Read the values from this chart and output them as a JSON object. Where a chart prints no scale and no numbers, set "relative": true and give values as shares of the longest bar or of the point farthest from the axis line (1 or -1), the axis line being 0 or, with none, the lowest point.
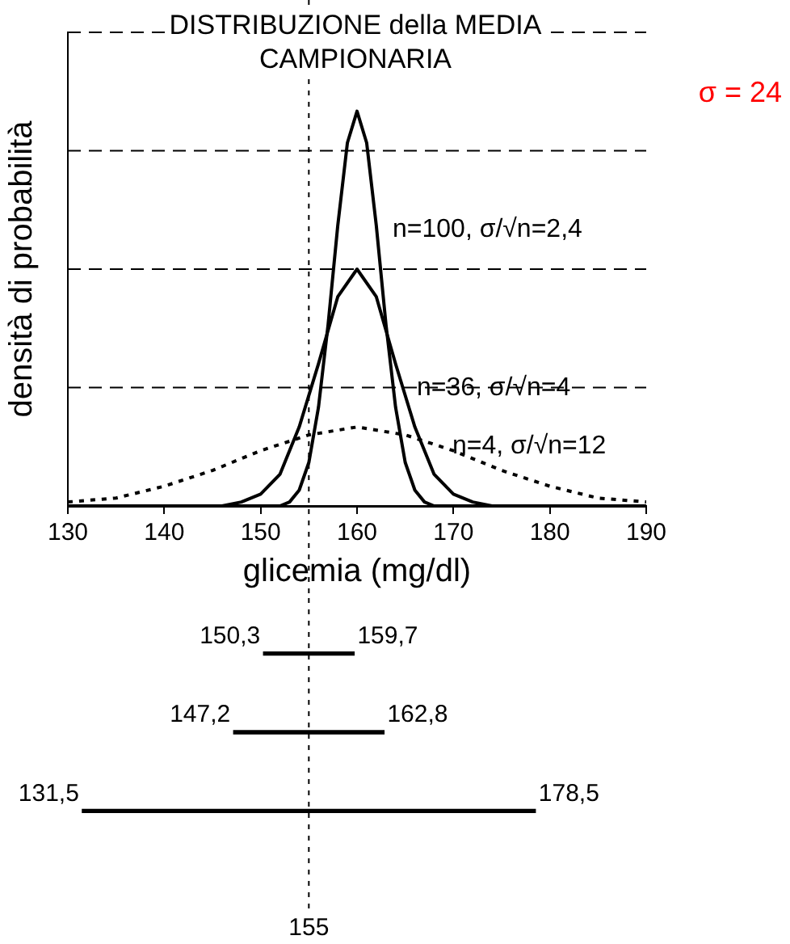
{
  "chart_data": [
    {
      "type": "line",
      "title": "DISTRIBUZIONE della MEDIA\nCAMPIONARIA",
      "xlabel": "glicemia (mg/dl)",
      "ylabel": "densità di probabilità",
      "relative": true,
      "xlim": [
        130,
        190
      ],
      "xticks": [
        130,
        140,
        150,
        160,
        170,
        180,
        190
      ],
      "grid": false,
      "legend": false,
      "marker": "none",
      "annotations": [
        "σ = 24"
      ],
      "ref_lines": [
        {
          "axis": "y",
          "value": 0.3,
          "line_style": "dashed"
        },
        {
          "axis": "y",
          "value": 0.6,
          "line_style": "dashed"
        },
        {
          "axis": "y",
          "value": 0.9,
          "line_style": "dashed"
        },
        {
          "axis": "y",
          "value": 1.2,
          "line_style": "dashed"
        },
        {
          "axis": "x",
          "value": 155,
          "line_style": "dotted"
        }
      ],
      "series": [
        {
          "name": "n=100, σ/√n=2,4",
          "color": "#000000",
          "line_style": "solid",
          "x": [
            130,
            148,
            150,
            152,
            153,
            154,
            155,
            156,
            157,
            158,
            159,
            160,
            161,
            162,
            163,
            164,
            165,
            166,
            167,
            168,
            170,
            172,
            190
          ],
          "values": [
            0,
            0,
            0,
            0,
            0.01,
            0.04,
            0.11,
            0.25,
            0.46,
            0.71,
            0.92,
            1,
            0.92,
            0.71,
            0.46,
            0.25,
            0.11,
            0.04,
            0.01,
            0,
            0,
            0,
            0
          ]
        },
        {
          "name": "n=36, σ/√n=4",
          "color": "#000000",
          "line_style": "solid",
          "x": [
            130,
            146,
            148,
            150,
            152,
            154,
            156,
            158,
            160,
            162,
            164,
            166,
            168,
            170,
            172,
            174,
            190
          ],
          "values": [
            0,
            0,
            0.01,
            0.03,
            0.08,
            0.2,
            0.36,
            0.53,
            0.6,
            0.53,
            0.36,
            0.2,
            0.08,
            0.03,
            0.01,
            0,
            0
          ]
        },
        {
          "name": "n=4, σ/√n=12",
          "color": "#000000",
          "line_style": "dotted",
          "x": [
            130,
            135,
            140,
            145,
            150,
            155,
            160,
            165,
            170,
            175,
            180,
            185,
            190
          ],
          "values": [
            0.01,
            0.02,
            0.05,
            0.09,
            0.14,
            0.18,
            0.2,
            0.18,
            0.14,
            0.09,
            0.05,
            0.02,
            0.01
          ]
        }
      ]
    },
    {
      "type": "bar",
      "orientation": "horizontal",
      "categories": [
        null,
        null,
        null
      ],
      "base": [
        150.3,
        147.2,
        131.5
      ],
      "values": [
        9.4,
        15.6,
        47.0
      ],
      "colors": [
        "#000000",
        "#000000",
        "#000000"
      ],
      "xlim": [
        130,
        190
      ],
      "tick_labels": false,
      "ref_lines": [
        {
          "axis": "x",
          "value": 155,
          "label": "155",
          "line_style": "dotted"
        }
      ],
      "annotations": [
        "150,3",
        "159,7",
        "147,2",
        "162,8",
        "131,5",
        "178,5"
      ]
    }
  ]
}
